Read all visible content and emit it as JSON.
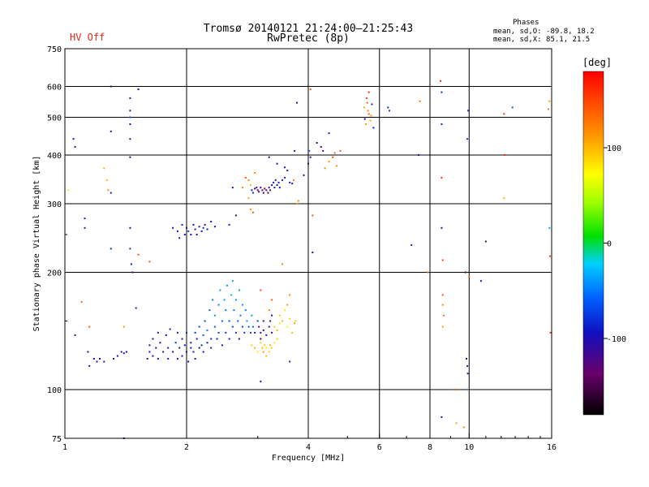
{
  "header": {
    "title": "Tromsø 20140121 21:24:00–21:25:43",
    "subtitle": "RwPretec (8p)",
    "status": "HV Off"
  },
  "phase_box": {
    "title": "Phases",
    "line1": "mean, sd,O: -89.8, 18.2",
    "line2": "mean, sd,X:  85.1, 21.5"
  },
  "colorbar": {
    "label": "[deg]",
    "ticks": [
      "100",
      "0",
      "-100"
    ],
    "tick_values": [
      100,
      0,
      -100
    ],
    "range": [
      -180,
      180
    ]
  },
  "chart_data": {
    "type": "scatter",
    "xlabel": "Frequency [MHz]",
    "ylabel": "Stationary phase Virtual Height [km]",
    "x_scale": "log",
    "y_scale": "log",
    "xlim": [
      1,
      16
    ],
    "ylim": [
      75,
      750
    ],
    "x_ticks": [
      1,
      2,
      4,
      6,
      8,
      10,
      16
    ],
    "x_tick_labels": [
      "1",
      "2",
      "4",
      "6",
      "8",
      "10",
      "16"
    ],
    "y_ticks": [
      75,
      100,
      200,
      300,
      400,
      500,
      600,
      750
    ],
    "y_tick_labels": [
      "75",
      "100",
      "200",
      "300",
      "400",
      "500",
      "600",
      "750"
    ],
    "grid": true,
    "color_variable": "phase [deg]",
    "points": [
      [
        1.05,
        440,
        -100
      ],
      [
        1.06,
        420,
        -100
      ],
      [
        1.12,
        275,
        -110
      ],
      [
        1.12,
        260,
        -110
      ],
      [
        1.14,
        125,
        -100
      ],
      [
        1.15,
        115,
        -110
      ],
      [
        1.18,
        120,
        -100
      ],
      [
        1.2,
        118,
        -100
      ],
      [
        1.22,
        120,
        -110
      ],
      [
        1.25,
        118,
        -110
      ],
      [
        1.25,
        370,
        100
      ],
      [
        1.27,
        345,
        100
      ],
      [
        1.28,
        325,
        120
      ],
      [
        1.3,
        230,
        -80
      ],
      [
        1.3,
        600,
        -110
      ],
      [
        1.3,
        460,
        -110
      ],
      [
        1.3,
        320,
        -100
      ],
      [
        1.32,
        120,
        -110
      ],
      [
        1.35,
        122,
        -100
      ],
      [
        1.38,
        125,
        -110
      ],
      [
        1.4,
        124,
        -110
      ],
      [
        1.42,
        125,
        -100
      ],
      [
        1.45,
        560,
        -110
      ],
      [
        1.45,
        520,
        -110
      ],
      [
        1.45,
        500,
        -60
      ],
      [
        1.45,
        480,
        -100
      ],
      [
        1.45,
        440,
        -110
      ],
      [
        1.45,
        395,
        -110
      ],
      [
        1.45,
        260,
        -110
      ],
      [
        1.45,
        230,
        -80
      ],
      [
        1.46,
        210,
        -120
      ],
      [
        1.47,
        200,
        -130
      ],
      [
        1.5,
        162,
        -90
      ],
      [
        1.52,
        590,
        -110
      ],
      [
        1.52,
        222,
        140
      ],
      [
        1.02,
        325,
        60
      ],
      [
        1.06,
        138,
        -100
      ],
      [
        1.1,
        168,
        130
      ],
      [
        1.15,
        145,
        140
      ],
      [
        1.4,
        145,
        110
      ],
      [
        1.4,
        75,
        -100
      ],
      [
        1.62,
        213,
        140
      ],
      [
        1.6,
        120,
        -110
      ],
      [
        1.62,
        125,
        -100
      ],
      [
        1.62,
        130,
        -110
      ],
      [
        1.65,
        122,
        -100
      ],
      [
        1.65,
        135,
        -110
      ],
      [
        1.68,
        128,
        -110
      ],
      [
        1.7,
        140,
        -100
      ],
      [
        1.7,
        120,
        -110
      ],
      [
        1.72,
        132,
        -100
      ],
      [
        1.75,
        125,
        -110
      ],
      [
        1.78,
        138,
        -100
      ],
      [
        1.8,
        120,
        -110
      ],
      [
        1.8,
        128,
        -100
      ],
      [
        1.82,
        143,
        -110
      ],
      [
        1.85,
        125,
        -100
      ],
      [
        1.88,
        132,
        -80
      ],
      [
        1.9,
        120,
        -110
      ],
      [
        1.9,
        140,
        -100
      ],
      [
        1.92,
        128,
        -100
      ],
      [
        1.95,
        135,
        -110
      ],
      [
        1.95,
        122,
        -100
      ],
      [
        1.98,
        130,
        -90
      ],
      [
        2.0,
        125,
        -100
      ],
      [
        2.0,
        140,
        -80
      ],
      [
        2.02,
        118,
        -110
      ],
      [
        2.05,
        132,
        -100
      ],
      [
        2.05,
        128,
        -90
      ],
      [
        2.08,
        125,
        -110
      ],
      [
        2.1,
        140,
        -80
      ],
      [
        2.1,
        120,
        -100
      ],
      [
        2.12,
        135,
        -90
      ],
      [
        2.15,
        128,
        -100
      ],
      [
        2.15,
        145,
        -70
      ],
      [
        2.18,
        130,
        -80
      ],
      [
        2.2,
        138,
        -60
      ],
      [
        2.2,
        125,
        -100
      ],
      [
        2.22,
        150,
        -70
      ],
      [
        2.25,
        132,
        -90
      ],
      [
        2.25,
        142,
        -50
      ],
      [
        2.28,
        160,
        -60
      ],
      [
        2.3,
        135,
        -80
      ],
      [
        2.3,
        128,
        -100
      ],
      [
        2.32,
        170,
        -50
      ],
      [
        2.35,
        145,
        -60
      ],
      [
        2.35,
        155,
        -40
      ],
      [
        2.38,
        135,
        -90
      ],
      [
        2.4,
        165,
        -50
      ],
      [
        2.4,
        140,
        -70
      ],
      [
        2.42,
        180,
        -40
      ],
      [
        2.45,
        150,
        -60
      ],
      [
        2.45,
        130,
        -100
      ],
      [
        2.48,
        170,
        -40
      ],
      [
        2.5,
        140,
        -80
      ],
      [
        2.5,
        160,
        -50
      ],
      [
        2.52,
        185,
        -40
      ],
      [
        2.55,
        150,
        -60
      ],
      [
        2.55,
        135,
        -90
      ],
      [
        2.58,
        175,
        -30
      ],
      [
        2.6,
        190,
        -40
      ],
      [
        2.6,
        145,
        -70
      ],
      [
        2.62,
        160,
        -50
      ],
      [
        2.65,
        140,
        -80
      ],
      [
        2.65,
        170,
        -40
      ],
      [
        2.68,
        150,
        -60
      ],
      [
        2.7,
        180,
        -40
      ],
      [
        2.7,
        135,
        -90
      ],
      [
        2.72,
        155,
        -50
      ],
      [
        2.75,
        165,
        -40
      ],
      [
        2.75,
        145,
        -70
      ],
      [
        2.78,
        140,
        -80
      ],
      [
        2.8,
        160,
        -50
      ],
      [
        2.82,
        150,
        -40
      ],
      [
        2.85,
        145,
        -60
      ],
      [
        2.88,
        140,
        -80
      ],
      [
        2.9,
        155,
        -40
      ],
      [
        2.92,
        145,
        -60
      ],
      [
        2.95,
        140,
        -90
      ],
      [
        3.0,
        150,
        -70
      ],
      [
        3.02,
        145,
        -140
      ],
      [
        3.05,
        140,
        -130
      ],
      [
        3.05,
        135,
        -150
      ],
      [
        3.1,
        150,
        -140
      ],
      [
        3.1,
        142,
        -120
      ],
      [
        3.15,
        138,
        -100
      ],
      [
        3.2,
        145,
        -110
      ],
      [
        3.22,
        150,
        -130
      ],
      [
        3.25,
        140,
        -120
      ],
      [
        3.25,
        155,
        -100
      ],
      [
        3.2,
        160,
        120
      ],
      [
        3.25,
        170,
        140
      ],
      [
        3.3,
        145,
        90
      ],
      [
        3.35,
        142,
        100
      ],
      [
        3.4,
        148,
        80
      ],
      [
        3.4,
        155,
        90
      ],
      [
        3.45,
        150,
        100
      ],
      [
        3.5,
        160,
        80
      ],
      [
        3.55,
        145,
        70
      ],
      [
        3.55,
        165,
        110
      ],
      [
        3.6,
        152,
        90
      ],
      [
        3.6,
        175,
        120
      ],
      [
        3.65,
        140,
        100
      ],
      [
        3.7,
        148,
        110
      ],
      [
        3.72,
        150,
        90
      ],
      [
        2.9,
        130,
        90
      ],
      [
        2.95,
        128,
        100
      ],
      [
        3.0,
        125,
        80
      ],
      [
        3.05,
        132,
        90
      ],
      [
        3.08,
        128,
        100
      ],
      [
        3.1,
        125,
        110
      ],
      [
        3.12,
        130,
        90
      ],
      [
        3.15,
        122,
        100
      ],
      [
        3.15,
        128,
        80
      ],
      [
        3.2,
        125,
        90
      ],
      [
        3.22,
        130,
        100
      ],
      [
        3.25,
        128,
        90
      ],
      [
        3.3,
        132,
        80
      ],
      [
        3.35,
        135,
        90
      ],
      [
        3.05,
        105,
        -110
      ],
      [
        3.45,
        210,
        120
      ],
      [
        3.6,
        118,
        -110
      ],
      [
        3.05,
        180,
        150
      ],
      [
        1.85,
        260,
        -110
      ],
      [
        1.9,
        255,
        -100
      ],
      [
        1.92,
        245,
        -100
      ],
      [
        1.95,
        265,
        -90
      ],
      [
        1.98,
        250,
        -100
      ],
      [
        2.0,
        260,
        -100
      ],
      [
        2.02,
        255,
        -80
      ],
      [
        2.05,
        250,
        -100
      ],
      [
        2.08,
        265,
        -90
      ],
      [
        2.1,
        258,
        -110
      ],
      [
        2.12,
        250,
        -100
      ],
      [
        2.15,
        262,
        -90
      ],
      [
        2.18,
        255,
        -100
      ],
      [
        2.2,
        260,
        -80
      ],
      [
        2.22,
        265,
        -110
      ],
      [
        2.25,
        258,
        -100
      ],
      [
        2.3,
        270,
        -90
      ],
      [
        2.35,
        262,
        -100
      ],
      [
        2.55,
        265,
        -100
      ],
      [
        2.6,
        330,
        -100
      ],
      [
        2.65,
        280,
        -110
      ],
      [
        2.75,
        330,
        120
      ],
      [
        2.8,
        350,
        140
      ],
      [
        2.85,
        345,
        120
      ],
      [
        2.88,
        335,
        100
      ],
      [
        2.9,
        325,
        -100
      ],
      [
        2.92,
        320,
        -80
      ],
      [
        2.95,
        328,
        -120
      ],
      [
        2.98,
        330,
        -100
      ],
      [
        3.0,
        325,
        -130
      ],
      [
        3.02,
        322,
        -140
      ],
      [
        3.05,
        330,
        -120
      ],
      [
        3.08,
        325,
        -140
      ],
      [
        3.1,
        320,
        -150
      ],
      [
        3.12,
        328,
        -130
      ],
      [
        3.15,
        325,
        -140
      ],
      [
        3.18,
        320,
        -150
      ],
      [
        3.2,
        330,
        -120
      ],
      [
        3.22,
        325,
        -110
      ],
      [
        3.25,
        335,
        -100
      ],
      [
        3.28,
        340,
        -90
      ],
      [
        3.3,
        330,
        -100
      ],
      [
        3.32,
        345,
        -110
      ],
      [
        3.35,
        335,
        -90
      ],
      [
        3.38,
        340,
        -100
      ],
      [
        3.4,
        330,
        -100
      ],
      [
        3.45,
        345,
        -80
      ],
      [
        3.5,
        350,
        -110
      ],
      [
        3.5,
        372,
        -100
      ],
      [
        3.55,
        365,
        -110
      ],
      [
        3.6,
        340,
        -100
      ],
      [
        3.65,
        338,
        -110
      ],
      [
        3.68,
        345,
        120
      ],
      [
        3.75,
        300,
        110
      ],
      [
        3.78,
        305,
        120
      ],
      [
        3.2,
        395,
        -110
      ],
      [
        3.35,
        380,
        -90
      ],
      [
        3.7,
        410,
        -110
      ],
      [
        3.75,
        545,
        -110
      ],
      [
        2.85,
        310,
        110
      ],
      [
        2.88,
        290,
        120
      ],
      [
        2.92,
        285,
        140
      ],
      [
        2.95,
        360,
        120
      ],
      [
        3.9,
        355,
        -90
      ],
      [
        4.0,
        380,
        -100
      ],
      [
        4.02,
        410,
        -60
      ],
      [
        4.05,
        395,
        -110
      ],
      [
        4.05,
        590,
        140
      ],
      [
        4.1,
        225,
        -110
      ],
      [
        4.1,
        280,
        140
      ],
      [
        4.2,
        430,
        -110
      ],
      [
        4.3,
        420,
        -100
      ],
      [
        4.35,
        410,
        -130
      ],
      [
        4.4,
        370,
        120
      ],
      [
        4.5,
        455,
        -90
      ],
      [
        4.5,
        385,
        110
      ],
      [
        4.6,
        395,
        150
      ],
      [
        4.65,
        405,
        130
      ],
      [
        4.7,
        375,
        120
      ],
      [
        4.8,
        410,
        140
      ],
      [
        5.5,
        530,
        110
      ],
      [
        5.52,
        495,
        -100
      ],
      [
        5.55,
        480,
        110
      ],
      [
        5.58,
        560,
        150
      ],
      [
        5.6,
        545,
        130
      ],
      [
        5.62,
        520,
        120
      ],
      [
        5.65,
        510,
        140
      ],
      [
        5.65,
        580,
        160
      ],
      [
        5.7,
        490,
        100
      ],
      [
        5.72,
        505,
        110
      ],
      [
        5.75,
        540,
        -80
      ],
      [
        5.8,
        470,
        -90
      ],
      [
        6.3,
        530,
        -80
      ],
      [
        6.35,
        520,
        -70
      ],
      [
        7.2,
        235,
        -110
      ],
      [
        7.5,
        400,
        -100
      ],
      [
        7.55,
        550,
        130
      ],
      [
        7.9,
        200,
        140
      ],
      [
        8.5,
        620,
        170
      ],
      [
        8.55,
        580,
        -80
      ],
      [
        8.55,
        480,
        -80
      ],
      [
        8.55,
        350,
        160
      ],
      [
        8.55,
        260,
        -110
      ],
      [
        8.6,
        215,
        150
      ],
      [
        8.6,
        175,
        140
      ],
      [
        8.6,
        165,
        120
      ],
      [
        8.65,
        155,
        130
      ],
      [
        8.6,
        145,
        110
      ],
      [
        8.55,
        85,
        -100
      ],
      [
        9.2,
        100,
        130
      ],
      [
        9.3,
        82,
        110
      ],
      [
        9.8,
        200,
        -150
      ],
      [
        9.85,
        120,
        -110
      ],
      [
        9.9,
        115,
        -100
      ],
      [
        9.92,
        110,
        -100
      ],
      [
        9.7,
        80,
        120
      ],
      [
        9.9,
        440,
        -80
      ],
      [
        9.95,
        520,
        -100
      ],
      [
        10.0,
        195,
        140
      ],
      [
        10.7,
        190,
        -90
      ],
      [
        11.0,
        240,
        -110
      ],
      [
        12.2,
        510,
        160
      ],
      [
        12.25,
        400,
        160
      ],
      [
        12.2,
        310,
        100
      ],
      [
        12.8,
        530,
        -60
      ],
      [
        15.8,
        550,
        110
      ],
      [
        15.7,
        525,
        130
      ],
      [
        15.8,
        260,
        -40
      ],
      [
        15.85,
        220,
        150
      ],
      [
        15.9,
        140,
        160
      ]
    ]
  }
}
